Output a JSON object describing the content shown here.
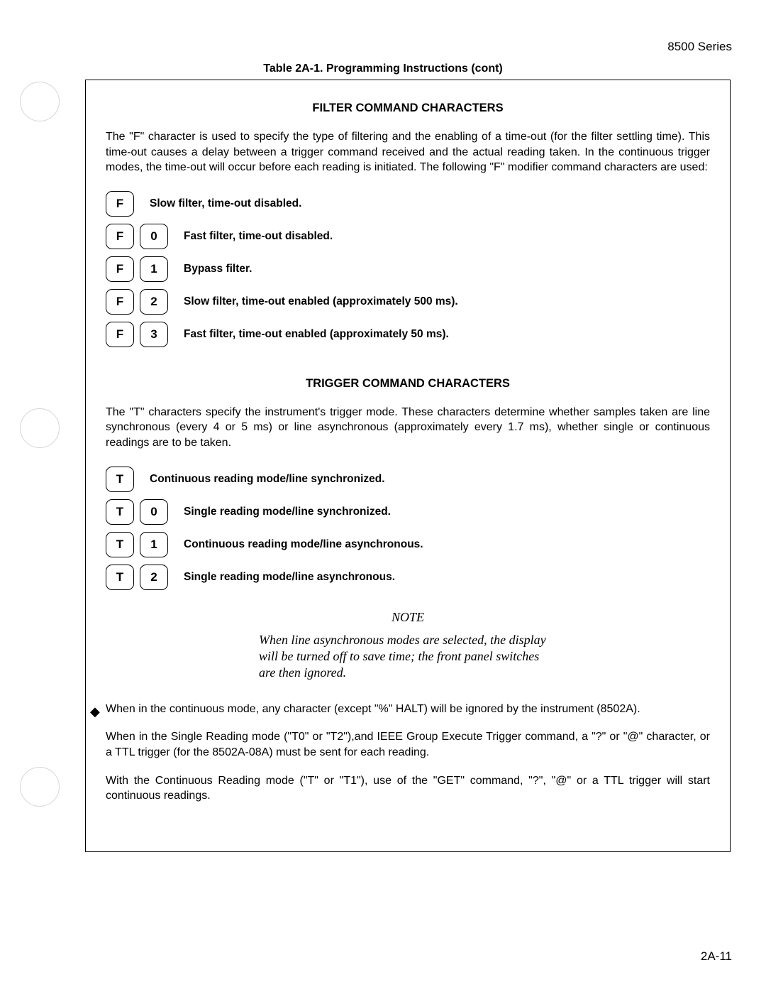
{
  "header": {
    "series": "8500 Series"
  },
  "table_title": "Table 2A-1. Programming Instructions (cont)",
  "filter": {
    "heading": "FILTER COMMAND CHARACTERS",
    "intro": "The \"F\" character is used to specify the type of filtering and the enabling of a time-out (for the filter settling time). This time-out causes a delay between a trigger command received and the actual reading taken. In the continuous trigger modes, the time-out will occur before each reading is initiated. The following \"F\" modifier command characters are used:",
    "rows": [
      {
        "keys": [
          "F"
        ],
        "desc": "Slow filter, time-out disabled."
      },
      {
        "keys": [
          "F",
          "0"
        ],
        "desc": "Fast filter, time-out disabled."
      },
      {
        "keys": [
          "F",
          "1"
        ],
        "desc": "Bypass filter."
      },
      {
        "keys": [
          "F",
          "2"
        ],
        "desc": "Slow filter, time-out enabled (approximately 500 ms)."
      },
      {
        "keys": [
          "F",
          "3"
        ],
        "desc": "Fast filter, time-out enabled (approximately 50 ms)."
      }
    ]
  },
  "trigger": {
    "heading": "TRIGGER COMMAND CHARACTERS",
    "intro": "The \"T\" characters specify the instrument's trigger mode. These characters determine whether samples taken are line synchronous (every 4 or 5 ms) or line asynchronous (approximately every 1.7 ms), whether single or continuous readings are to be taken.",
    "rows": [
      {
        "keys": [
          "T"
        ],
        "desc": "Continuous reading mode/line synchronized."
      },
      {
        "keys": [
          "T",
          "0"
        ],
        "desc": "Single reading mode/line synchronized."
      },
      {
        "keys": [
          "T",
          "1"
        ],
        "desc": "Continuous reading mode/line asynchronous."
      },
      {
        "keys": [
          "T",
          "2"
        ],
        "desc": "Single reading mode/line asynchronous."
      }
    ]
  },
  "note": {
    "label": "NOTE",
    "body": "When line asynchronous modes are selected, the display will be turned off to save time; the front panel switches are then ignored."
  },
  "footer_paras": {
    "p1": "When in the continuous mode, any character (except \"%\" HALT) will be ignored by the instrument (8502A).",
    "p2": "When in the Single Reading mode (\"T0\" or \"T2\"),and IEEE Group Execute Trigger command, a \"?\" or \"@\" character, or a TTL trigger (for the 8502A-08A) must be sent for each reading.",
    "p3": "With the Continuous Reading mode (\"T\" or \"T1\"), use of the \"GET\" command, \"?\", \"@\" or a TTL trigger will start continuous readings."
  },
  "page_number": "2A-11",
  "diamond_glyph": "◆"
}
